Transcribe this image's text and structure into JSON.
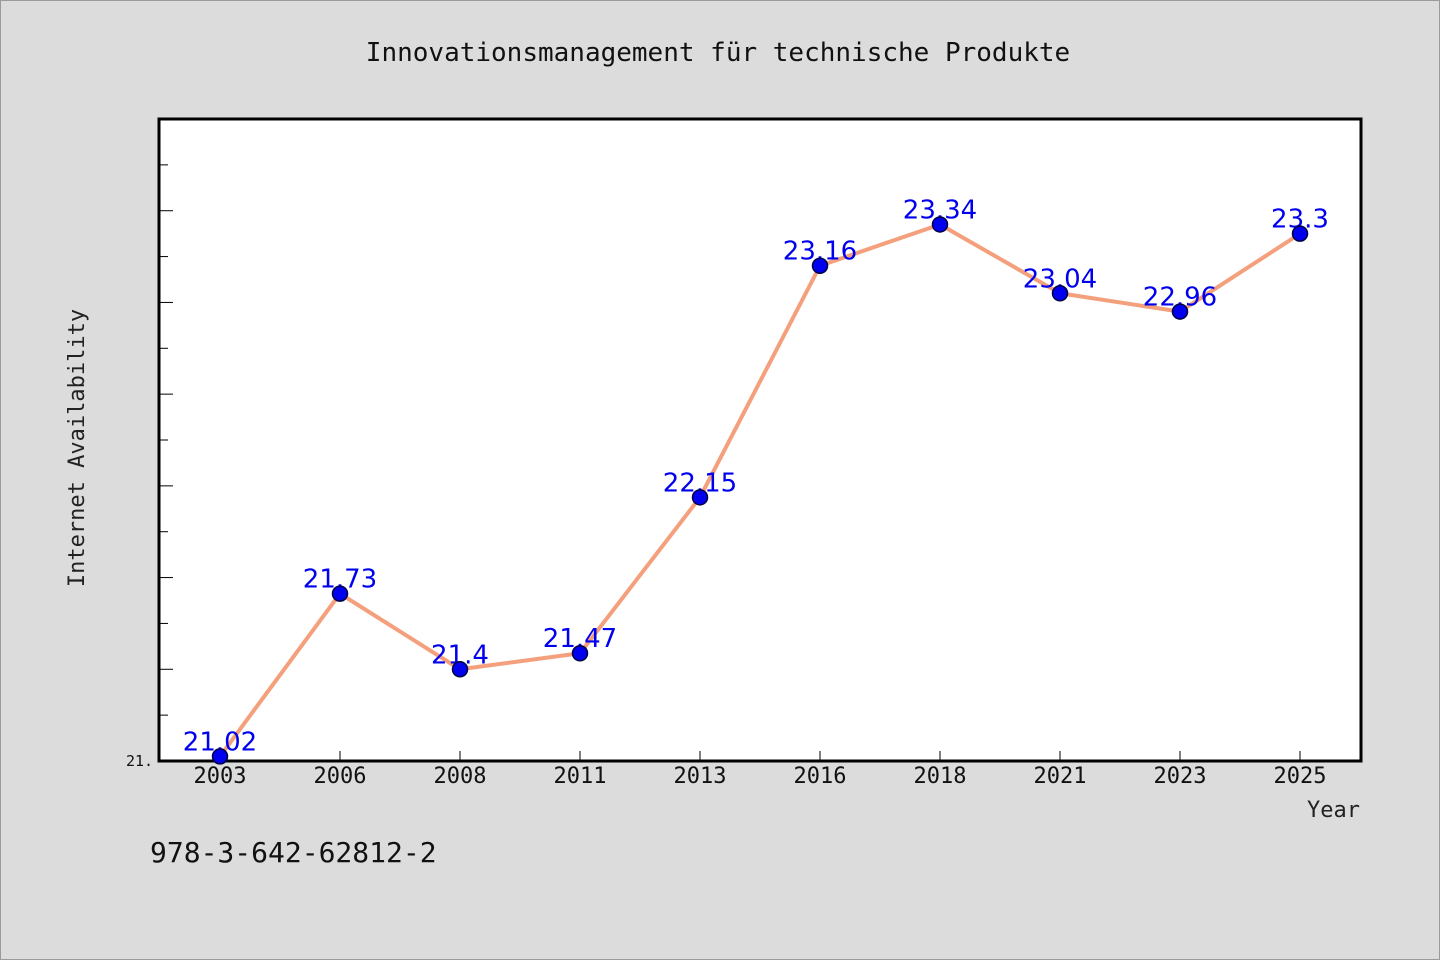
{
  "chart_data": {
    "type": "line",
    "title": "Innovationsmanagement für technische Produkte",
    "xlabel": "Year",
    "ylabel": "Internet Availability",
    "categories": [
      "2003",
      "2006",
      "2008",
      "2011",
      "2013",
      "2016",
      "2018",
      "2021",
      "2023",
      "2025"
    ],
    "series": [
      {
        "values": [
          21.02,
          21.73,
          21.4,
          21.47,
          22.15,
          23.16,
          23.34,
          23.04,
          22.96,
          23.3
        ]
      }
    ],
    "data_labels": [
      "21.02",
      "21.73",
      "21.4",
      "21.47",
      "22.15",
      "23.16",
      "23.34",
      "23.04",
      "22.96",
      "23.3"
    ],
    "ylim": [
      21.0,
      23.8
    ],
    "y_tick_label": "21.",
    "grid": false,
    "legend": "none",
    "colors": {
      "line": "#f4a07c",
      "marker": "#0000ee",
      "label": "#0000ee",
      "background": "#dcdcdc",
      "plot_background": "#ffffff"
    }
  },
  "footer": {
    "isbn": "978-3-642-62812-2"
  }
}
